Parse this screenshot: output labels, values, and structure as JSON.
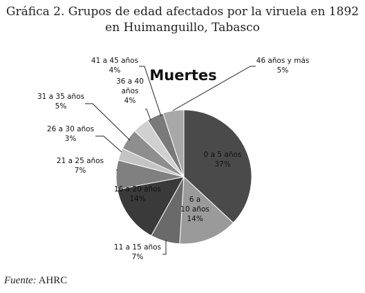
{
  "title_line1": "Gráfica 2. Grupos de edad afectados por la viruela en 1892",
  "title_line2": "en Huimanguillo, Tabasco",
  "source_label": "Fuente:",
  "source_value": "AHRC",
  "chart_data": {
    "type": "pie",
    "title": "Muertes",
    "slices": [
      {
        "label": "0 a 5 años",
        "value": 37,
        "value_label": "37%",
        "color": "#4a4a4a"
      },
      {
        "label": "6 a 10 años",
        "value": 14,
        "value_label": "14%",
        "color": "#9a9a9a"
      },
      {
        "label": "11 a 15 años",
        "value": 7,
        "value_label": "7%",
        "color": "#6a6a6a"
      },
      {
        "label": "16 a 20 años",
        "value": 14,
        "value_label": "14%",
        "color": "#3a3a3a"
      },
      {
        "label": "21 a 25 años",
        "value": 7,
        "value_label": "7%",
        "color": "#808080"
      },
      {
        "label": "26 a 30 años",
        "value": 3,
        "value_label": "3%",
        "color": "#c4c4c4"
      },
      {
        "label": "31 a 35 años",
        "value": 5,
        "value_label": "5%",
        "color": "#8e8e8e"
      },
      {
        "label": "36 a 40 años",
        "value": 4,
        "value_label": "4%",
        "color": "#d0d0d0"
      },
      {
        "label": "41 a 45 años",
        "value": 4,
        "value_label": "4%",
        "color": "#7a7a7a"
      },
      {
        "label": "46 años y más",
        "value": 5,
        "value_label": "5%",
        "color": "#a8a8a8"
      }
    ]
  }
}
